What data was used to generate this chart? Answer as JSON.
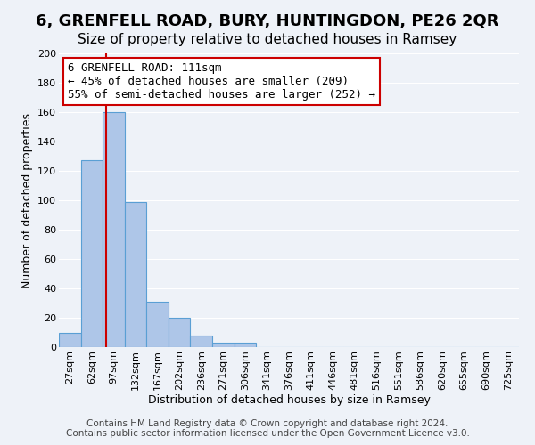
{
  "title": "6, GRENFELL ROAD, BURY, HUNTINGDON, PE26 2QR",
  "subtitle": "Size of property relative to detached houses in Ramsey",
  "xlabel": "Distribution of detached houses by size in Ramsey",
  "ylabel": "Number of detached properties",
  "bin_labels": [
    "27sqm",
    "62sqm",
    "97sqm",
    "132sqm",
    "167sqm",
    "202sqm",
    "236sqm",
    "271sqm",
    "306sqm",
    "341sqm",
    "376sqm",
    "411sqm",
    "446sqm",
    "481sqm",
    "516sqm",
    "551sqm",
    "586sqm",
    "620sqm",
    "655sqm",
    "690sqm",
    "725sqm"
  ],
  "bar_heights": [
    10,
    127,
    160,
    99,
    31,
    20,
    8,
    3,
    3,
    0,
    0,
    0,
    0,
    0,
    0,
    0,
    0,
    0,
    0,
    0,
    0
  ],
  "bar_color": "#aec6e8",
  "bar_edge_color": "#5a9fd4",
  "background_color": "#eef2f8",
  "grid_color": "#ffffff",
  "ylim": [
    0,
    200
  ],
  "yticks": [
    0,
    20,
    40,
    60,
    80,
    100,
    120,
    140,
    160,
    180,
    200
  ],
  "annotation_box_text": "6 GRENFELL ROAD: 111sqm\n← 45% of detached houses are smaller (209)\n55% of semi-detached houses are larger (252) →",
  "annotation_box_color": "#cc0000",
  "vline_x": 2.14,
  "vline_color": "#cc0000",
  "footer_line1": "Contains HM Land Registry data © Crown copyright and database right 2024.",
  "footer_line2": "Contains public sector information licensed under the Open Government Licence v3.0.",
  "title_fontsize": 13,
  "subtitle_fontsize": 11,
  "axis_label_fontsize": 9,
  "tick_fontsize": 8,
  "annotation_fontsize": 9,
  "footer_fontsize": 7.5
}
